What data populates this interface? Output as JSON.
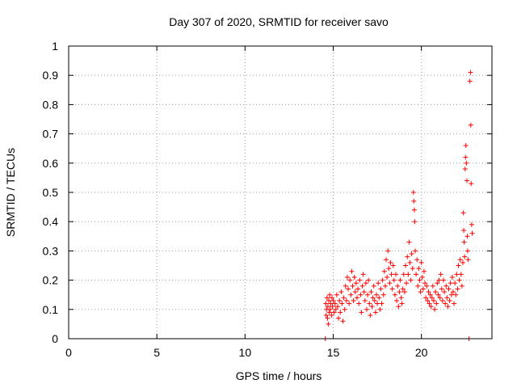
{
  "colors": {
    "points": "#ff0000",
    "axis": "#000000",
    "grid": "#a0a0a0",
    "background": "#ffffff"
  },
  "chart_data": {
    "type": "scatter",
    "title": "Day 307 of 2020, SRMTID for receiver savo",
    "xlabel": "GPS time / hours",
    "ylabel": "SRMTID / TECUs",
    "xlim": [
      0,
      24
    ],
    "ylim": [
      0,
      1
    ],
    "xticks": [
      0,
      5,
      10,
      15,
      20
    ],
    "xtick_labels": [
      "0",
      "5",
      "10",
      "15",
      "20"
    ],
    "yticks": [
      0,
      0.1,
      0.2,
      0.3,
      0.4,
      0.5,
      0.6,
      0.7,
      0.8,
      0.9,
      1
    ],
    "ytick_labels": [
      "0",
      "0.1",
      "0.2",
      "0.3",
      "0.4",
      "0.5",
      "0.6",
      "0.7",
      "0.8",
      "0.9",
      "1"
    ],
    "grid": true,
    "legend": "none",
    "marker": "plus",
    "series": [
      {
        "name": "SRMTID",
        "points": [
          [
            14.55,
            0.0
          ],
          [
            14.58,
            0.12
          ],
          [
            14.6,
            0.08
          ],
          [
            14.62,
            0.1
          ],
          [
            14.65,
            0.14
          ],
          [
            14.68,
            0.07
          ],
          [
            14.7,
            0.11
          ],
          [
            14.72,
            0.05
          ],
          [
            14.75,
            0.13
          ],
          [
            14.78,
            0.09
          ],
          [
            14.8,
            0.15
          ],
          [
            14.83,
            0.1
          ],
          [
            14.86,
            0.12
          ],
          [
            14.9,
            0.08
          ],
          [
            14.93,
            0.14
          ],
          [
            14.96,
            0.11
          ],
          [
            15.0,
            0.13
          ],
          [
            15.05,
            0.09
          ],
          [
            15.1,
            0.12
          ],
          [
            15.15,
            0.1
          ],
          [
            15.2,
            0.15
          ],
          [
            15.25,
            0.11
          ],
          [
            15.3,
            0.07
          ],
          [
            15.35,
            0.13
          ],
          [
            15.4,
            0.09
          ],
          [
            15.45,
            0.16
          ],
          [
            15.5,
            0.12
          ],
          [
            15.55,
            0.06
          ],
          [
            15.6,
            0.14
          ],
          [
            15.65,
            0.1
          ],
          [
            15.7,
            0.18
          ],
          [
            15.75,
            0.13
          ],
          [
            15.8,
            0.21
          ],
          [
            15.85,
            0.17
          ],
          [
            15.9,
            0.12
          ],
          [
            15.95,
            0.2
          ],
          [
            16.0,
            0.15
          ],
          [
            16.05,
            0.23
          ],
          [
            16.1,
            0.18
          ],
          [
            16.15,
            0.13
          ],
          [
            16.2,
            0.21
          ],
          [
            16.25,
            0.16
          ],
          [
            16.3,
            0.19
          ],
          [
            16.35,
            0.14
          ],
          [
            16.4,
            0.17
          ],
          [
            16.45,
            0.12
          ],
          [
            16.5,
            0.2
          ],
          [
            16.55,
            0.15
          ],
          [
            16.6,
            0.09
          ],
          [
            16.65,
            0.18
          ],
          [
            16.7,
            0.22
          ],
          [
            16.75,
            0.16
          ],
          [
            16.8,
            0.13
          ],
          [
            16.85,
            0.19
          ],
          [
            16.9,
            0.1
          ],
          [
            16.95,
            0.15
          ],
          [
            17.0,
            0.2
          ],
          [
            17.05,
            0.12
          ],
          [
            17.1,
            0.08
          ],
          [
            17.15,
            0.16
          ],
          [
            17.2,
            0.11
          ],
          [
            17.25,
            0.14
          ],
          [
            17.3,
            0.18
          ],
          [
            17.35,
            0.13
          ],
          [
            17.4,
            0.09
          ],
          [
            17.45,
            0.15
          ],
          [
            17.5,
            0.12
          ],
          [
            17.55,
            0.19
          ],
          [
            17.6,
            0.14
          ],
          [
            17.65,
            0.1
          ],
          [
            17.7,
            0.17
          ],
          [
            17.75,
            0.12
          ],
          [
            17.8,
            0.2
          ],
          [
            17.85,
            0.15
          ],
          [
            17.9,
            0.23
          ],
          [
            17.95,
            0.18
          ],
          [
            18.0,
            0.27
          ],
          [
            18.05,
            0.21
          ],
          [
            18.1,
            0.3
          ],
          [
            18.15,
            0.24
          ],
          [
            18.2,
            0.19
          ],
          [
            18.25,
            0.26
          ],
          [
            18.3,
            0.22
          ],
          [
            18.35,
            0.17
          ],
          [
            18.4,
            0.25
          ],
          [
            18.45,
            0.2
          ],
          [
            18.5,
            0.15
          ],
          [
            18.55,
            0.22
          ],
          [
            18.6,
            0.13
          ],
          [
            18.65,
            0.18
          ],
          [
            18.7,
            0.11
          ],
          [
            18.75,
            0.16
          ],
          [
            18.8,
            0.2
          ],
          [
            18.85,
            0.14
          ],
          [
            18.9,
            0.12
          ],
          [
            18.95,
            0.17
          ],
          [
            19.0,
            0.22
          ],
          [
            19.05,
            0.16
          ],
          [
            19.1,
            0.25
          ],
          [
            19.15,
            0.19
          ],
          [
            19.2,
            0.28
          ],
          [
            19.25,
            0.22
          ],
          [
            19.3,
            0.33
          ],
          [
            19.35,
            0.26
          ],
          [
            19.4,
            0.2
          ],
          [
            19.45,
            0.29
          ],
          [
            19.5,
            0.24
          ],
          [
            19.55,
            0.5
          ],
          [
            19.57,
            0.47
          ],
          [
            19.6,
            0.44
          ],
          [
            19.62,
            0.4
          ],
          [
            19.65,
            0.3
          ],
          [
            19.7,
            0.22
          ],
          [
            19.75,
            0.27
          ],
          [
            19.8,
            0.18
          ],
          [
            19.85,
            0.24
          ],
          [
            19.9,
            0.2
          ],
          [
            19.95,
            0.16
          ],
          [
            20.0,
            0.26
          ],
          [
            20.05,
            0.21
          ],
          [
            20.1,
            0.17
          ],
          [
            20.15,
            0.23
          ],
          [
            20.2,
            0.19
          ],
          [
            20.25,
            0.14
          ],
          [
            20.3,
            0.18
          ],
          [
            20.35,
            0.13
          ],
          [
            20.4,
            0.16
          ],
          [
            20.45,
            0.12
          ],
          [
            20.5,
            0.15
          ],
          [
            20.55,
            0.11
          ],
          [
            20.6,
            0.14
          ],
          [
            20.65,
            0.18
          ],
          [
            20.7,
            0.13
          ],
          [
            20.75,
            0.1
          ],
          [
            20.8,
            0.16
          ],
          [
            20.85,
            0.12
          ],
          [
            20.9,
            0.19
          ],
          [
            20.95,
            0.15
          ],
          [
            21.0,
            0.2
          ],
          [
            21.05,
            0.14
          ],
          [
            21.1,
            0.22
          ],
          [
            21.15,
            0.17
          ],
          [
            21.2,
            0.13
          ],
          [
            21.25,
            0.2
          ],
          [
            21.3,
            0.16
          ],
          [
            21.35,
            0.12
          ],
          [
            21.4,
            0.18
          ],
          [
            21.45,
            0.14
          ],
          [
            21.5,
            0.11
          ],
          [
            21.55,
            0.17
          ],
          [
            21.6,
            0.13
          ],
          [
            21.65,
            0.19
          ],
          [
            21.7,
            0.15
          ],
          [
            21.75,
            0.21
          ],
          [
            21.8,
            0.16
          ],
          [
            21.85,
            0.12
          ],
          [
            21.9,
            0.19
          ],
          [
            21.95,
            0.15
          ],
          [
            22.0,
            0.22
          ],
          [
            22.05,
            0.17
          ],
          [
            22.1,
            0.25
          ],
          [
            22.15,
            0.2
          ],
          [
            22.2,
            0.27
          ],
          [
            22.25,
            0.22
          ],
          [
            22.3,
            0.18
          ],
          [
            22.35,
            0.26
          ],
          [
            22.38,
            0.43
          ],
          [
            22.4,
            0.37
          ],
          [
            22.42,
            0.33
          ],
          [
            22.45,
            0.28
          ],
          [
            22.48,
            0.58
          ],
          [
            22.5,
            0.62
          ],
          [
            22.52,
            0.66
          ],
          [
            22.55,
            0.6
          ],
          [
            22.58,
            0.54
          ],
          [
            22.6,
            0.35
          ],
          [
            22.62,
            0.3
          ],
          [
            22.65,
            0.27
          ],
          [
            22.7,
            0.0
          ],
          [
            22.75,
            0.88
          ],
          [
            22.78,
            0.91
          ],
          [
            22.8,
            0.73
          ],
          [
            22.82,
            0.53
          ],
          [
            22.85,
            0.39
          ],
          [
            22.88,
            0.36
          ]
        ]
      }
    ]
  }
}
